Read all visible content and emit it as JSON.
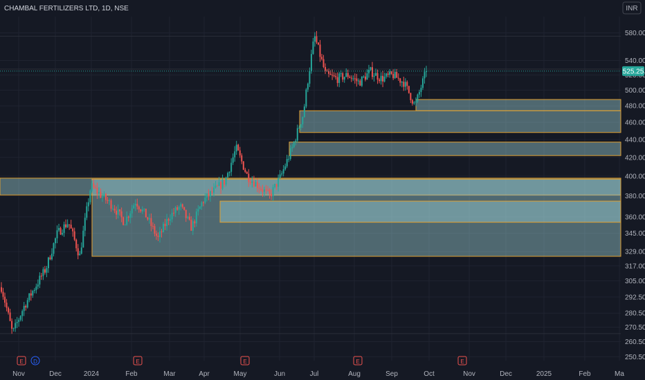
{
  "header": {
    "symbol_title": "CHAMBAL FERTILIZERS LTD, 1D, NSE",
    "currency": "INR",
    "current_price": "525.25"
  },
  "colors": {
    "background": "#151924",
    "grid": "#1f2330",
    "up": "#26a69a",
    "down": "#ef5350",
    "zone_fill": "#9fd6dc",
    "zone_border": "#e0a030",
    "price_tag": "#26a69a",
    "text": "#b2b5be"
  },
  "chart_data": {
    "type": "candlestick",
    "title": "CHAMBAL FERTILIZERS LTD, 1D, NSE",
    "y_scale": "log",
    "ylim": [
      248,
      605
    ],
    "y_ticks": [
      "580.00",
      "540.00",
      "520.00",
      "500.00",
      "480.00",
      "460.00",
      "440.00",
      "420.00",
      "400.00",
      "380.00",
      "360.00",
      "345.00",
      "329.00",
      "317.00",
      "305.00",
      "292.50",
      "280.50",
      "270.50",
      "260.50",
      "250.50"
    ],
    "x_ticks": [
      "Nov",
      "Dec",
      "2024",
      "Feb",
      "Mar",
      "Apr",
      "May",
      "Jun",
      "Jul",
      "Aug",
      "Sep",
      "Oct",
      "Nov",
      "Dec",
      "2025",
      "Feb",
      "Ma"
    ],
    "event_markers": [
      {
        "label": "E",
        "type": "earnings",
        "date": "Nov"
      },
      {
        "label": "D",
        "type": "dividend",
        "date": "Nov"
      },
      {
        "label": "E",
        "type": "earnings",
        "date": "Feb"
      },
      {
        "label": "E",
        "type": "earnings",
        "date": "May"
      },
      {
        "label": "E",
        "type": "earnings",
        "date": "Aug"
      },
      {
        "label": "E",
        "type": "earnings",
        "date": "Nov"
      }
    ],
    "last_price": 525.25,
    "price_anchors": [
      [
        "Nov",
        300
      ],
      [
        "Nov",
        266
      ],
      [
        "Nov",
        285
      ],
      [
        "Nov",
        300
      ],
      [
        "Dec",
        315
      ],
      [
        "Dec",
        345
      ],
      [
        "Dec",
        355
      ],
      [
        "Dec",
        325
      ],
      [
        "2024",
        390
      ],
      [
        "2024",
        380
      ],
      [
        "Feb",
        370
      ],
      [
        "Feb",
        355
      ],
      [
        "Feb",
        375
      ],
      [
        "Mar",
        360
      ],
      [
        "Mar",
        340
      ],
      [
        "Mar",
        360
      ],
      [
        "Apr",
        370
      ],
      [
        "Apr",
        350
      ],
      [
        "Apr",
        375
      ],
      [
        "Apr",
        385
      ],
      [
        "May",
        395
      ],
      [
        "May",
        430
      ],
      [
        "May",
        400
      ],
      [
        "May",
        390
      ],
      [
        "Jun",
        380
      ],
      [
        "Jun",
        400
      ],
      [
        "Jun",
        430
      ],
      [
        "Jun",
        470
      ],
      [
        "Jul",
        575
      ],
      [
        "Jul",
        520
      ],
      [
        "Jul",
        515
      ],
      [
        "Aug",
        520
      ],
      [
        "Aug",
        510
      ],
      [
        "Aug",
        525
      ],
      [
        "Sep",
        515
      ],
      [
        "Sep",
        520
      ],
      [
        "Sep",
        510
      ],
      [
        "Sep",
        480
      ],
      [
        "Oct",
        525.25
      ]
    ],
    "zones": [
      {
        "date_from": "Oct 2023",
        "low": 381,
        "high": 398
      },
      {
        "date_from": "Jan 2024",
        "low": 325,
        "high": 397
      },
      {
        "date_from": "Apr 2024",
        "low": 355,
        "high": 375
      },
      {
        "date_from": "Jun 2024",
        "low": 422,
        "high": 437
      },
      {
        "date_from": "Jun 2024",
        "low": 448,
        "high": 474
      },
      {
        "date_from": "Sep 2024",
        "low": 474,
        "high": 488
      }
    ],
    "horizontal_lines": [
      575,
      528,
      266
    ]
  }
}
